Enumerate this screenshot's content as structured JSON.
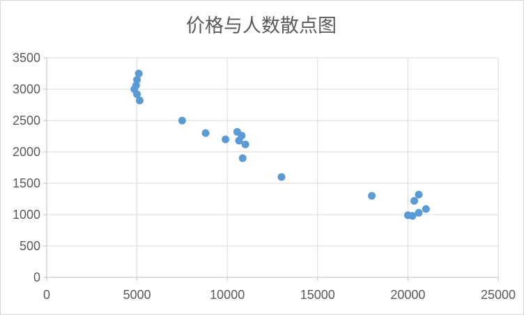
{
  "window": {
    "background": "#FFFFFF",
    "border_color": "#D8D8D8"
  },
  "chart_data": {
    "type": "scatter",
    "title": "价格与人数散点图",
    "xlabel": "",
    "ylabel": "",
    "xlim": [
      0,
      25000
    ],
    "ylim": [
      0,
      3500
    ],
    "x_ticks": [
      0,
      5000,
      10000,
      15000,
      20000,
      25000
    ],
    "y_ticks": [
      0,
      500,
      1000,
      1500,
      2000,
      2500,
      3000,
      3500
    ],
    "grid": true,
    "legend_position": "none",
    "title_color": "#595959",
    "tick_label_color": "#595959",
    "gridline_color": "#D9D9D9",
    "axis_line_color": "#BFBFBF",
    "marker_color": "#5B9BD5",
    "series": [
      {
        "name": "价格与人数",
        "points": [
          [
            5100,
            3250
          ],
          [
            5000,
            3150
          ],
          [
            4950,
            3060
          ],
          [
            4850,
            3000
          ],
          [
            5000,
            2920
          ],
          [
            5150,
            2820
          ],
          [
            7500,
            2500
          ],
          [
            8800,
            2300
          ],
          [
            9900,
            2200
          ],
          [
            10550,
            2320
          ],
          [
            10800,
            2260
          ],
          [
            10650,
            2180
          ],
          [
            11000,
            2120
          ],
          [
            10850,
            1900
          ],
          [
            13000,
            1600
          ],
          [
            18000,
            1300
          ],
          [
            20600,
            1320
          ],
          [
            20350,
            1220
          ],
          [
            21000,
            1090
          ],
          [
            20600,
            1030
          ],
          [
            20250,
            980
          ],
          [
            20000,
            990
          ]
        ]
      }
    ]
  }
}
